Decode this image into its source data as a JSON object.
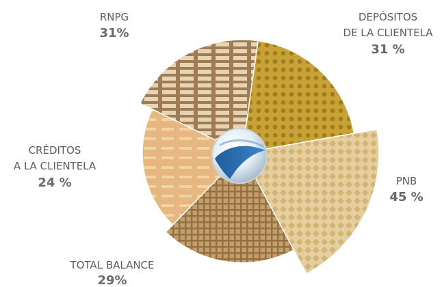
{
  "chart_data": {
    "type": "pie",
    "slices": [
      {
        "label_lines": [
          "DEPÓSITOS",
          "DE LA CLIENTELA"
        ],
        "value_label": "31 %",
        "value": 31,
        "color": "#c9a235",
        "pattern": "dots"
      },
      {
        "label_lines": [
          "PNB"
        ],
        "value_label": "45 %",
        "value": 45,
        "color": "#e0c690",
        "pattern": "diamonds"
      },
      {
        "label_lines": [
          "TOTAL BALANCE"
        ],
        "value_label": "29%",
        "value": 29,
        "color": "#b48f62",
        "pattern": "grid"
      },
      {
        "label_lines": [
          "CRÉDITOS",
          "A LA CLIENTELA"
        ],
        "value_label": "24 %",
        "value": 24,
        "color": "#e3b27a",
        "pattern": "dashes"
      },
      {
        "label_lines": [
          "RNPG"
        ],
        "value_label": "31%",
        "value": 31,
        "color": "#b89a74",
        "pattern": "bricks"
      }
    ]
  }
}
